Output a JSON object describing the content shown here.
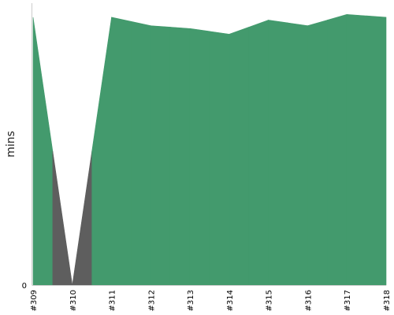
{
  "chart_data": {
    "type": "area",
    "x": [
      "#309",
      "#310",
      "#311",
      "#312",
      "#313",
      "#314",
      "#315",
      "#316",
      "#317",
      "#318"
    ],
    "series": [
      {
        "values": [
          95,
          0,
          95,
          92,
          91,
          89,
          94,
          92,
          96,
          95
        ],
        "status": [
          "pass",
          "fail",
          "pass",
          "pass",
          "pass",
          "pass",
          "pass",
          "pass",
          "pass",
          "pass"
        ]
      }
    ],
    "xlabel": "",
    "ylabel": "mins",
    "ylim": [
      0,
      100
    ],
    "yticks": [
      "0"
    ],
    "grid": false,
    "colors": {
      "pass": "#439a6d",
      "fail": "#5e5e5e",
      "axis": "#cccccc"
    }
  }
}
